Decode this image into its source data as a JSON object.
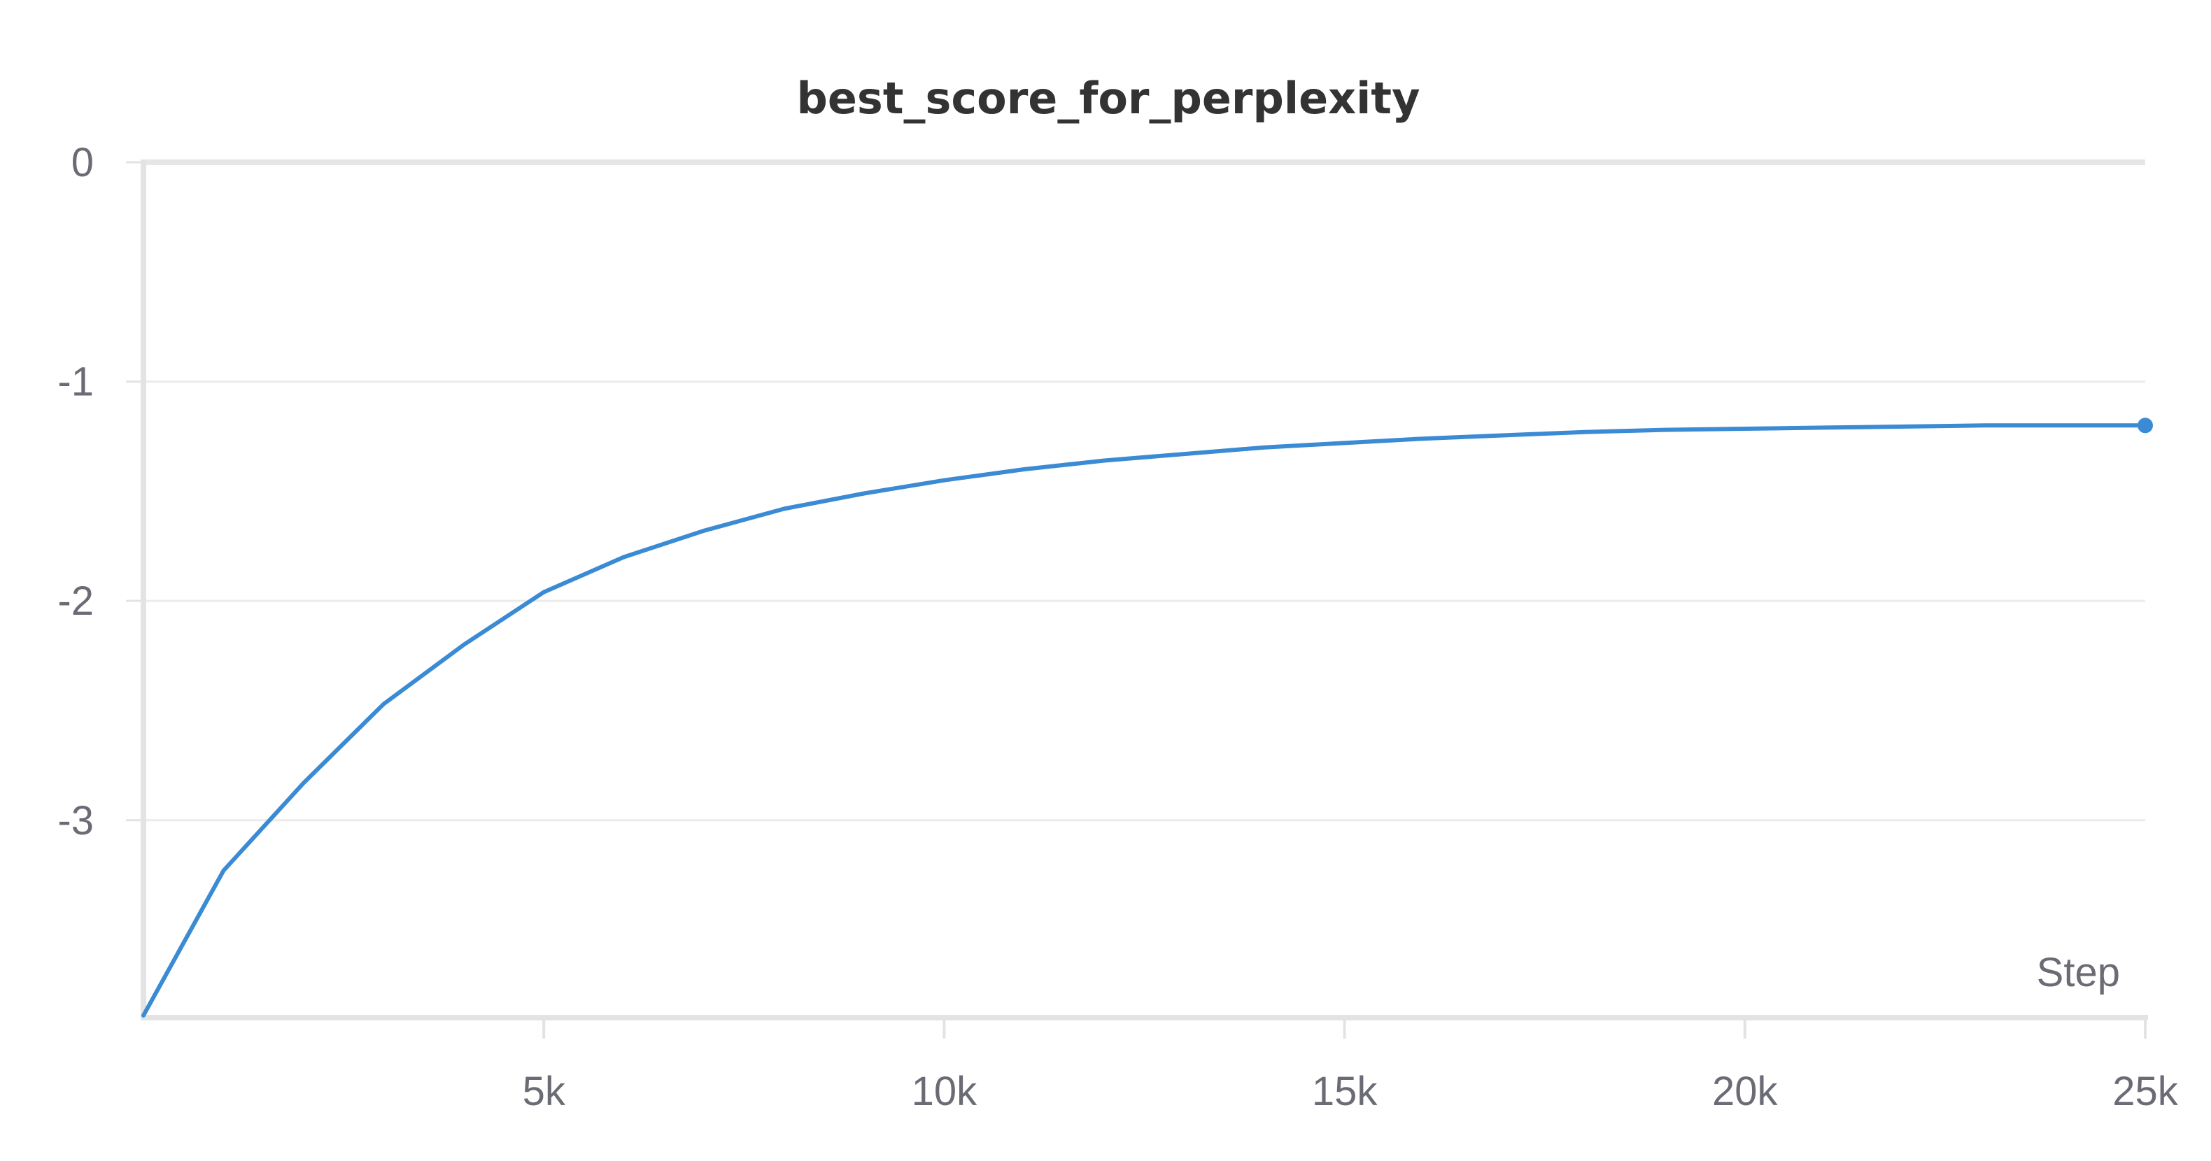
{
  "chart_data": {
    "type": "line",
    "title": "best_score_for_perplexity",
    "xlabel": "Step",
    "ylabel": "",
    "xlim": [
      0,
      25000
    ],
    "ylim": [
      -3.9,
      0
    ],
    "x_ticks": [
      5000,
      10000,
      15000,
      20000,
      25000
    ],
    "x_tick_labels": [
      "5k",
      "10k",
      "15k",
      "20k",
      "25k"
    ],
    "y_ticks": [
      0,
      -1,
      -2,
      -3
    ],
    "y_tick_labels": [
      "0",
      "-1",
      "-2",
      "-3"
    ],
    "grid": true,
    "legend": "none",
    "series": [
      {
        "color": "#3b8bd4",
        "x": [
          0,
          1000,
          2000,
          3000,
          4000,
          5000,
          6000,
          7000,
          8000,
          9000,
          10000,
          11000,
          12000,
          13000,
          14000,
          15000,
          16000,
          17000,
          18000,
          19000,
          20000,
          21000,
          22000,
          23000,
          24000,
          25000
        ],
        "values": [
          -3.89,
          -3.23,
          -2.83,
          -2.47,
          -2.2,
          -1.96,
          -1.8,
          -1.68,
          -1.58,
          -1.51,
          -1.45,
          -1.4,
          -1.36,
          -1.33,
          -1.3,
          -1.28,
          -1.26,
          -1.245,
          -1.23,
          -1.22,
          -1.215,
          -1.21,
          -1.205,
          -1.2,
          -1.2,
          -1.2
        ]
      }
    ]
  }
}
